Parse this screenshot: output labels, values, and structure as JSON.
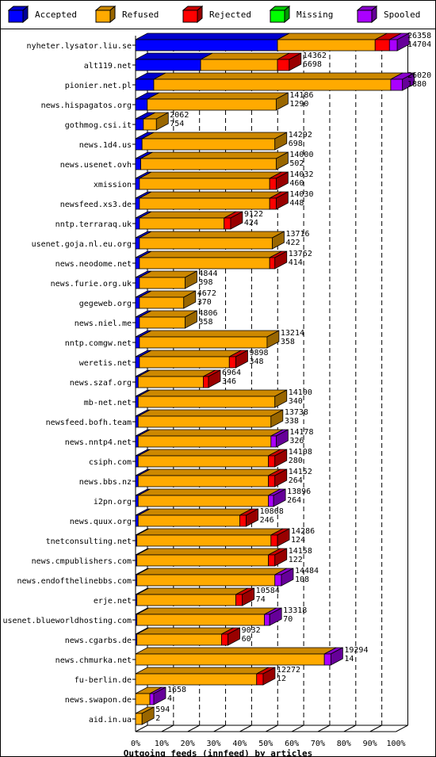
{
  "legend": [
    {
      "label": "Accepted",
      "color": "#0000ff"
    },
    {
      "label": "Refused",
      "color": "#ffaa00"
    },
    {
      "label": "Rejected",
      "color": "#ff0000"
    },
    {
      "label": "Missing",
      "color": "#00ff00"
    },
    {
      "label": "Spooled",
      "color": "#aa00ff"
    }
  ],
  "chart_data": {
    "type": "bar",
    "orientation": "horizontal",
    "stacked": true,
    "title": "",
    "xlabel": "Outgoing feeds (innfeed) by articles",
    "ylabel": "",
    "xlim": [
      0,
      100
    ],
    "x_tick_labels": [
      "0%",
      "10%",
      "20%",
      "30%",
      "40%",
      "50%",
      "60%",
      "70%",
      "80%",
      "90%",
      "100%"
    ],
    "grid": true,
    "series_order": [
      "Accepted",
      "Refused",
      "Rejected",
      "Missing",
      "Spooled"
    ],
    "categories": [
      {
        "name": "nyheter.lysator.liu.se",
        "offered": "26358",
        "accepted": "14704",
        "seg": [
          54.5,
          37.5,
          5.5,
          0,
          3.0
        ]
      },
      {
        "name": "alt119.net",
        "offered": "14362",
        "accepted": "6698",
        "seg": [
          25.0,
          29.5,
          4.5,
          0,
          0
        ]
      },
      {
        "name": "pionier.net.pl",
        "offered": "26020",
        "accepted": "1880",
        "seg": [
          7.0,
          91.0,
          0,
          0,
          4.5
        ]
      },
      {
        "name": "news.hispagatos.org",
        "offered": "14186",
        "accepted": "1290",
        "seg": [
          4.5,
          49.5,
          0,
          0,
          0
        ]
      },
      {
        "name": "gothmog.csi.it",
        "offered": "2062",
        "accepted": "754",
        "seg": [
          3.0,
          5.0,
          0,
          0,
          0
        ]
      },
      {
        "name": "news.1d4.us",
        "offered": "14292",
        "accepted": "698",
        "seg": [
          2.5,
          51.0,
          0,
          0,
          0
        ]
      },
      {
        "name": "news.usenet.ovh",
        "offered": "14000",
        "accepted": "502",
        "seg": [
          2.0,
          52.0,
          0,
          0,
          0
        ]
      },
      {
        "name": "xmission",
        "offered": "14032",
        "accepted": "460",
        "seg": [
          1.5,
          50.0,
          2.5,
          0,
          0
        ]
      },
      {
        "name": "newsfeed.xs3.de",
        "offered": "14030",
        "accepted": "448",
        "seg": [
          1.5,
          50.0,
          2.5,
          0,
          0
        ]
      },
      {
        "name": "nntp.terraraq.uk",
        "offered": "9122",
        "accepted": "424",
        "seg": [
          1.5,
          32.5,
          2.5,
          0,
          0
        ]
      },
      {
        "name": "usenet.goja.nl.eu.org",
        "offered": "13716",
        "accepted": "422",
        "seg": [
          1.5,
          51.0,
          0,
          0,
          0
        ]
      },
      {
        "name": "news.neodome.net",
        "offered": "13762",
        "accepted": "414",
        "seg": [
          1.5,
          50.0,
          2.0,
          0,
          0
        ]
      },
      {
        "name": "news.furie.org.uk",
        "offered": "4844",
        "accepted": "398",
        "seg": [
          1.5,
          17.5,
          0,
          0,
          0
        ]
      },
      {
        "name": "gegeweb.org",
        "offered": "4672",
        "accepted": "370",
        "seg": [
          1.5,
          17.0,
          0,
          0,
          0
        ]
      },
      {
        "name": "news.niel.me",
        "offered": "4806",
        "accepted": "358",
        "seg": [
          1.5,
          17.5,
          0,
          0,
          0
        ]
      },
      {
        "name": "nntp.comgw.net",
        "offered": "13214",
        "accepted": "358",
        "seg": [
          1.5,
          49.0,
          0,
          0,
          0
        ]
      },
      {
        "name": "weretis.net",
        "offered": "9898",
        "accepted": "348",
        "seg": [
          1.5,
          34.5,
          2.5,
          0,
          0
        ]
      },
      {
        "name": "news.szaf.org",
        "offered": "6964",
        "accepted": "346",
        "seg": [
          1.0,
          25.0,
          2.0,
          0,
          0
        ]
      },
      {
        "name": "mb-net.net",
        "offered": "14100",
        "accepted": "340",
        "seg": [
          1.0,
          52.5,
          0,
          0,
          0
        ]
      },
      {
        "name": "newsfeed.bofh.team",
        "offered": "13738",
        "accepted": "338",
        "seg": [
          1.0,
          51.0,
          0,
          0,
          0
        ]
      },
      {
        "name": "news.nntp4.net",
        "offered": "14178",
        "accepted": "326",
        "seg": [
          1.0,
          51.0,
          0,
          0,
          2.0
        ]
      },
      {
        "name": "csiph.com",
        "offered": "14108",
        "accepted": "280",
        "seg": [
          1.0,
          50.0,
          2.5,
          0,
          0
        ]
      },
      {
        "name": "news.bbs.nz",
        "offered": "14152",
        "accepted": "264",
        "seg": [
          1.0,
          50.0,
          2.5,
          0,
          0
        ]
      },
      {
        "name": "i2pn.org",
        "offered": "13896",
        "accepted": "264",
        "seg": [
          1.0,
          50.0,
          0,
          0,
          2.0
        ]
      },
      {
        "name": "news.quux.org",
        "offered": "10868",
        "accepted": "246",
        "seg": [
          1.0,
          39.0,
          2.5,
          0,
          0
        ]
      },
      {
        "name": "tnetconsulting.net",
        "offered": "14286",
        "accepted": "124",
        "seg": [
          0.5,
          51.5,
          2.5,
          0,
          0
        ]
      },
      {
        "name": "news.cmpublishers.com",
        "offered": "14158",
        "accepted": "122",
        "seg": [
          0.5,
          50.5,
          2.5,
          0,
          0
        ]
      },
      {
        "name": "news.endofthelinebbs.com",
        "offered": "14484",
        "accepted": "108",
        "seg": [
          0.5,
          53.0,
          0,
          0,
          2.5
        ]
      },
      {
        "name": "erje.net",
        "offered": "10584",
        "accepted": "74",
        "seg": [
          0.5,
          38.0,
          2.5,
          0,
          0
        ]
      },
      {
        "name": "usenet.blueworldhosting.com",
        "offered": "13318",
        "accepted": "70",
        "seg": [
          0.5,
          49.0,
          0,
          0,
          2.0
        ]
      },
      {
        "name": "news.cgarbs.de",
        "offered": "9032",
        "accepted": "60",
        "seg": [
          0.5,
          32.5,
          2.5,
          0,
          0
        ]
      },
      {
        "name": "news.chmurka.net",
        "offered": "19294",
        "accepted": "14",
        "seg": [
          0,
          72.5,
          0,
          0,
          2.5
        ]
      },
      {
        "name": "fu-berlin.de",
        "offered": "12272",
        "accepted": "12",
        "seg": [
          0,
          46.5,
          2.5,
          0,
          0
        ]
      },
      {
        "name": "news.swapon.de",
        "offered": "1658",
        "accepted": "4",
        "seg": [
          0,
          5.5,
          0,
          0,
          1.5
        ]
      },
      {
        "name": "aid.in.ua",
        "offered": "594",
        "accepted": "2",
        "seg": [
          0,
          2.5,
          0,
          0,
          0
        ]
      }
    ]
  }
}
